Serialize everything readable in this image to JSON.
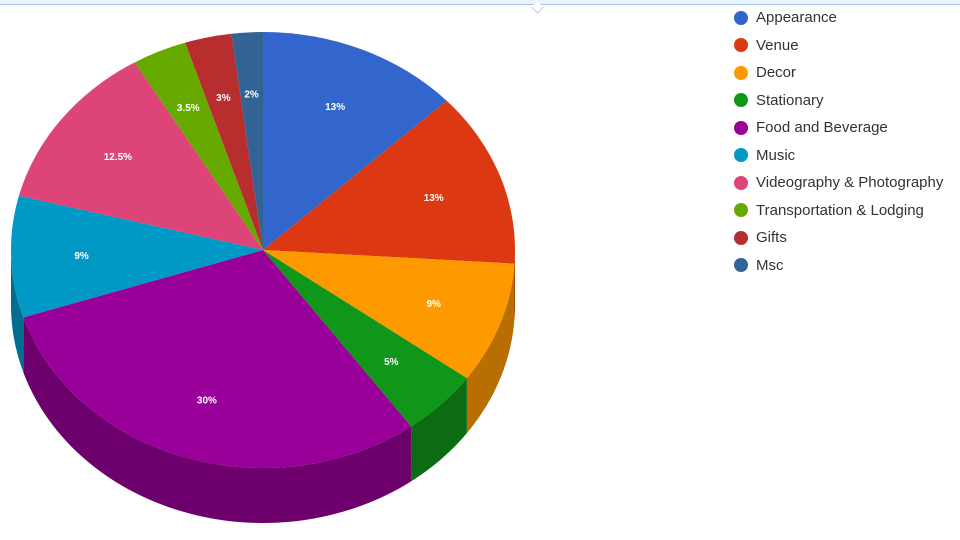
{
  "chart_data": {
    "type": "pie",
    "three_d": true,
    "legend_position": "right",
    "series": [
      {
        "name": "Appearance",
        "value": 13,
        "label": "13%",
        "color": "#3366cc"
      },
      {
        "name": "Venue",
        "value": 13,
        "label": "13%",
        "color": "#dc3912"
      },
      {
        "name": "Decor",
        "value": 9,
        "label": "9%",
        "color": "#ff9900"
      },
      {
        "name": "Stationary",
        "value": 5,
        "label": "5%",
        "color": "#109618"
      },
      {
        "name": "Food and Beverage",
        "value": 30,
        "label": "30%",
        "color": "#990099"
      },
      {
        "name": "Music",
        "value": 9,
        "label": "9%",
        "color": "#0099c6"
      },
      {
        "name": "Videography & Photography",
        "value": 12.5,
        "label": "12.5%",
        "color": "#dd4477"
      },
      {
        "name": "Transportation & Lodging",
        "value": 3.5,
        "label": "3.5%",
        "color": "#66aa00"
      },
      {
        "name": "Gifts",
        "value": 3,
        "label": "3%",
        "color": "#b82e2e"
      },
      {
        "name": "Msc",
        "value": 2,
        "label": "2%",
        "color": "#316395"
      }
    ]
  }
}
